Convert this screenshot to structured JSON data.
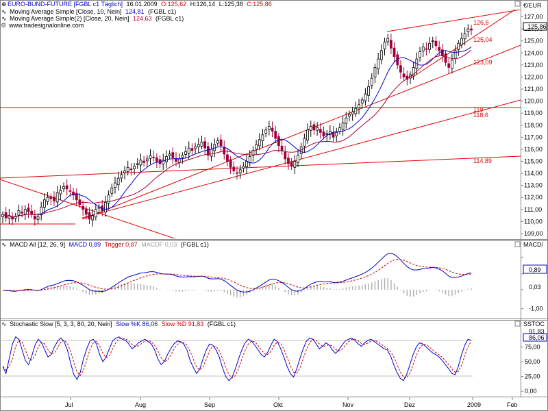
{
  "price_panel": {
    "title": "EURO-BUND-FUTURE [FGBL c1 Täglich]",
    "date": "16.01.2009",
    "open": "O:125,62",
    "high": "H:126,14",
    "low": "L:125,38",
    "close": "C:125,86",
    "ma1_label": "Moving Average Simple [Close, 10, Nein]",
    "ma1_value": "124,81",
    "ma1_suffix": "(FGBL c1)",
    "ma2_label": "Moving Average Simple(2) [Close, 20, Nein]",
    "ma2_value": "124,63",
    "ma2_suffix": "(FGBL c1)",
    "source": "www.tradesignalonline.com",
    "axis_unit": "€/EUR",
    "current_price": "125,86",
    "annotations": [
      "126,6",
      "125,04",
      "123,09",
      "119",
      "118,6",
      "114,89"
    ]
  },
  "macd_panel": {
    "title": "MACD All [12, 26, 9]",
    "macd_label": "MACD 0,89",
    "trigger_label": "Trigger 0,87",
    "macdf_label": "MACDF 0,03",
    "suffix": "(FGBL c1)",
    "axis_unit": "MACD/",
    "current_macd": "0,89",
    "current_hist": "0,03"
  },
  "stoch_panel": {
    "title": "Stochastic Slow [5, 3, 3, 80, 20, Nein]",
    "k_label": "Slow %K 86,06",
    "d_label": "Slow %D 91,83",
    "suffix": "(FGBL c1)",
    "axis_unit": "SSTOC",
    "current_k": "86,06",
    "current_d": "91,83"
  },
  "x_axis": [
    "Jul",
    "Aug",
    "Sep",
    "Okt",
    "Nov",
    "Dez",
    "2009",
    "Feb"
  ],
  "colors": {
    "up": "#000000",
    "down": "#a0003a",
    "ma1": "#0000cc",
    "ma2": "#aa0033",
    "lines": "#e00000",
    "macd": "#0000cc",
    "trigger": "#cc0000",
    "hist": "#b0b0b0"
  },
  "chart_data": [
    {
      "type": "candlestick",
      "title": "EURO-BUND-FUTURE",
      "ylabel": "€/EUR",
      "ylim": [
        108.6,
        127.6
      ],
      "yticks": [
        109,
        110,
        111,
        112,
        113,
        114,
        115,
        116,
        117,
        118,
        119,
        120,
        121,
        122,
        123,
        124,
        125,
        126,
        127
      ],
      "close": [
        110.6,
        110.3,
        110.5,
        110.2,
        110.4,
        110.9,
        110.7,
        111.0,
        110.8,
        110.6,
        110.2,
        110.4,
        111.2,
        111.8,
        112.0,
        111.9,
        111.7,
        112.4,
        112.6,
        112.9,
        112.7,
        112.5,
        112.2,
        111.8,
        111.4,
        111.0,
        110.6,
        110.2,
        110.5,
        111.0,
        111.2,
        110.9,
        111.6,
        112.2,
        112.8,
        113.2,
        113.6,
        113.9,
        114.2,
        114.5,
        114.3,
        114.6,
        114.8,
        115.1,
        114.9,
        115.2,
        115.5,
        115.3,
        115.0,
        114.8,
        115.1,
        115.4,
        115.6,
        115.3,
        115.0,
        115.2,
        115.5,
        115.8,
        116.1,
        115.9,
        116.2,
        116.4,
        116.6,
        116.1,
        115.5,
        116.0,
        116.4,
        116.7,
        116.3,
        115.6,
        115.0,
        114.5,
        114.2,
        114.0,
        114.3,
        114.6,
        115.0,
        115.4,
        115.9,
        116.4,
        116.8,
        117.2,
        117.6,
        117.9,
        117.5,
        116.9,
        116.3,
        115.9,
        115.2,
        114.8,
        114.6,
        115.0,
        115.5,
        116.2,
        116.9,
        117.6,
        117.9,
        117.6,
        117.8,
        117.4,
        117.1,
        117.3,
        117.5,
        117.0,
        117.4,
        117.8,
        118.2,
        118.6,
        118.9,
        119.1,
        119.4,
        119.7,
        120.1,
        120.6,
        121.2,
        121.9,
        122.8,
        123.5,
        124.2,
        124.9,
        125.2,
        124.4,
        123.7,
        123.0,
        122.4,
        122.0,
        121.8,
        122.2,
        122.8,
        123.5,
        124.1,
        124.5,
        124.3,
        124.8,
        125.0,
        124.6,
        124.2,
        123.8,
        123.2,
        122.8,
        123.4,
        124.2,
        124.8,
        125.2,
        125.6,
        126.0,
        125.9
      ],
      "ma10_last": 124.81,
      "ma20_last": 124.63,
      "horizontal_levels": [
        119.0,
        118.6,
        114.89,
        109.7
      ],
      "annotations": [
        "126,6",
        "125,04",
        "123,09",
        "119",
        "118,6",
        "114,89"
      ]
    },
    {
      "type": "line",
      "title": "MACD All [12, 26, 9]",
      "ylim": [
        -1.5,
        2.3
      ],
      "yticks": [
        -1.0,
        0.03,
        0.89
      ],
      "series": [
        {
          "name": "MACD",
          "last": 0.89
        },
        {
          "name": "Trigger",
          "last": 0.87
        },
        {
          "name": "MACDF",
          "last": 0.03
        }
      ]
    },
    {
      "type": "line",
      "title": "Stochastic Slow [5, 3, 3, 80, 20, Nein]",
      "ylim": [
        -8,
        108
      ],
      "yticks": [
        0,
        25,
        50,
        75
      ],
      "levels": [
        80,
        20
      ],
      "series": [
        {
          "name": "Slow %K",
          "last": 86.06,
          "values": [
            42,
            30,
            55,
            80,
            92,
            88,
            70,
            52,
            45,
            60,
            78,
            88,
            82,
            70,
            58,
            62,
            75,
            85,
            90,
            84,
            70,
            48,
            28,
            20,
            32,
            55,
            72,
            85,
            88,
            80,
            62,
            50,
            58,
            72,
            85,
            90,
            92,
            88,
            86,
            80,
            72,
            76,
            82,
            85,
            88,
            84,
            80,
            70,
            55,
            45,
            50,
            62,
            72,
            80,
            85,
            84,
            80,
            70,
            52,
            40,
            30,
            38,
            55,
            70,
            80,
            78,
            70,
            58,
            40,
            25,
            18,
            24,
            38,
            55,
            70,
            82,
            88,
            85,
            78,
            70,
            62,
            58,
            66,
            78,
            88,
            84,
            72,
            58,
            42,
            30,
            24,
            38,
            56,
            72,
            85,
            90,
            88,
            80,
            72,
            76,
            82,
            78,
            70,
            64,
            70,
            78,
            85,
            88,
            90,
            86,
            80,
            76,
            82,
            86,
            88,
            84,
            80,
            76,
            72,
            70,
            60,
            45,
            32,
            22,
            18,
            28,
            45,
            62,
            75,
            82,
            80,
            75,
            70,
            65,
            62,
            58,
            52,
            45,
            38,
            30,
            28,
            42,
            62,
            78,
            88,
            86
          ]
        },
        {
          "name": "Slow %D",
          "last": 91.83
        }
      ]
    }
  ]
}
